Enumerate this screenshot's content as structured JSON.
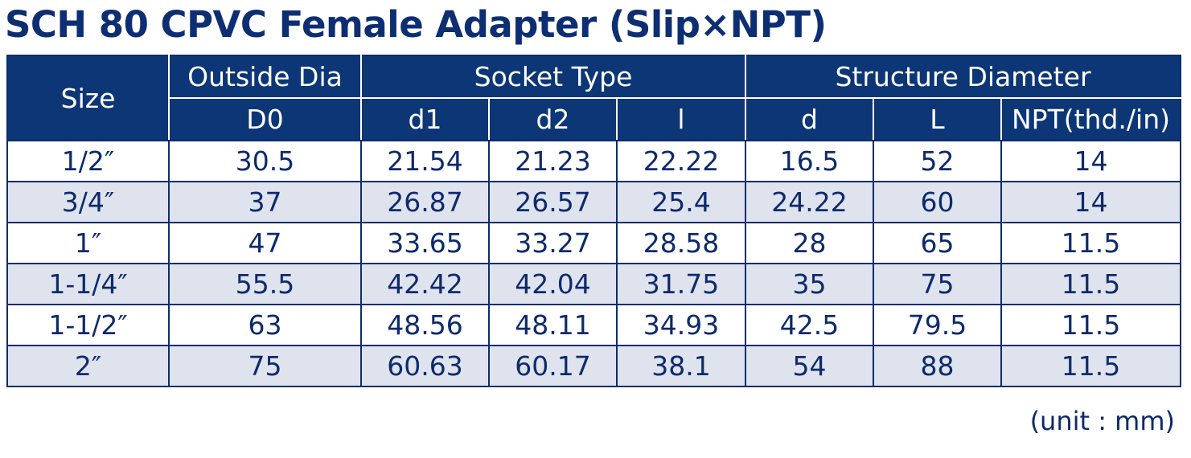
{
  "title": "SCH 80 CPVC Female Adapter (Slip×NPT)",
  "header": {
    "size": "Size",
    "outside_dia": "Outside Dia",
    "socket_type": "Socket Type",
    "structure_diameter": "Structure Diameter",
    "sub": [
      "D0",
      "d1",
      "d2",
      "l",
      "d",
      "L",
      "NPT(thd./in)"
    ]
  },
  "rows": [
    [
      "1/2″",
      "30.5",
      "21.54",
      "21.23",
      "22.22",
      "16.5",
      "52",
      "14"
    ],
    [
      "3/4″",
      "37",
      "26.87",
      "26.57",
      "25.4",
      "24.22",
      "60",
      "14"
    ],
    [
      "1″",
      "47",
      "33.65",
      "33.27",
      "28.58",
      "28",
      "65",
      "11.5"
    ],
    [
      "1-1/4″",
      "55.5",
      "42.42",
      "42.04",
      "31.75",
      "35",
      "75",
      "11.5"
    ],
    [
      "1-1/2″",
      "63",
      "48.56",
      "48.11",
      "34.93",
      "42.5",
      "79.5",
      "11.5"
    ],
    [
      "2″",
      "75",
      "60.63",
      "60.17",
      "38.1",
      "54",
      "88",
      "11.5"
    ]
  ],
  "unit_note": "(unit : mm)"
}
